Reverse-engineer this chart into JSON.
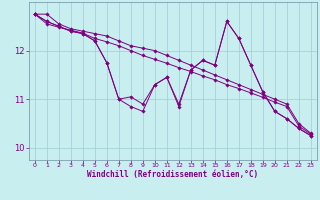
{
  "xlabel": "Windchill (Refroidissement éolien,°C)",
  "background_color": "#c8eef0",
  "line_color": "#800080",
  "grid_color": "#9ecdd4",
  "xlim": [
    -0.5,
    23.5
  ],
  "ylim": [
    9.75,
    13.0
  ],
  "yticks": [
    10,
    11,
    12
  ],
  "xticks": [
    0,
    1,
    2,
    3,
    4,
    5,
    6,
    7,
    8,
    9,
    10,
    11,
    12,
    13,
    14,
    15,
    16,
    17,
    18,
    19,
    20,
    21,
    22,
    23
  ],
  "series": [
    [
      12.75,
      12.75,
      12.55,
      12.45,
      12.4,
      12.35,
      12.3,
      12.2,
      12.1,
      12.05,
      12.0,
      11.9,
      11.8,
      11.7,
      11.6,
      11.5,
      11.4,
      11.3,
      11.2,
      11.1,
      11.0,
      10.9,
      10.5,
      10.3
    ],
    [
      12.75,
      12.6,
      12.5,
      12.4,
      12.35,
      12.2,
      11.75,
      11.0,
      11.05,
      10.9,
      11.3,
      11.45,
      10.9,
      11.6,
      11.8,
      11.7,
      12.6,
      12.25,
      11.7,
      11.15,
      10.75,
      10.6,
      10.4,
      10.25
    ],
    [
      12.75,
      12.6,
      12.5,
      12.4,
      12.35,
      12.2,
      11.75,
      11.0,
      10.85,
      10.75,
      11.3,
      11.45,
      10.85,
      11.6,
      11.8,
      11.7,
      12.6,
      12.25,
      11.7,
      11.15,
      10.75,
      10.6,
      10.4,
      10.25
    ],
    [
      12.75,
      12.55,
      12.48,
      12.42,
      12.36,
      12.25,
      12.18,
      12.1,
      12.0,
      11.9,
      11.82,
      11.74,
      11.65,
      11.57,
      11.48,
      11.4,
      11.3,
      11.22,
      11.13,
      11.04,
      10.94,
      10.85,
      10.45,
      10.28
    ]
  ]
}
